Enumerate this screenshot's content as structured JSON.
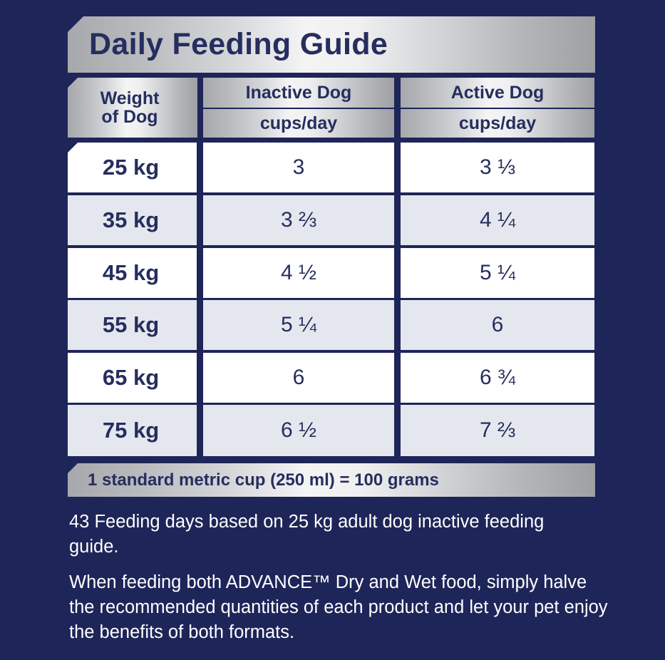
{
  "title": "Daily Feeding Guide",
  "headers": {
    "weight_line1": "Weight",
    "weight_line2": "of Dog",
    "inactive": "Inactive Dog",
    "active": "Active Dog",
    "unit": "cups/day"
  },
  "rows": [
    {
      "weight": "25 kg",
      "inactive": "3",
      "active": "3 ⅓"
    },
    {
      "weight": "35 kg",
      "inactive": "3 ⅔",
      "active": "4 ¼"
    },
    {
      "weight": "45 kg",
      "inactive": "4 ½",
      "active": "5 ¼"
    },
    {
      "weight": "55 kg",
      "inactive": "5 ¼",
      "active": "6"
    },
    {
      "weight": "65 kg",
      "inactive": "6",
      "active": "6 ¾"
    },
    {
      "weight": "75 kg",
      "inactive": "6 ½",
      "active": "7 ⅔"
    }
  ],
  "footer": "1 standard metric cup (250 ml) = 100 grams",
  "notes": [
    "43 Feeding days based on 25 kg adult dog inactive feeding guide.",
    "When feeding both ADVANCE™ Dry and Wet food, simply halve the recommended quantities of each product and let your pet enjoy the benefits of both formats."
  ],
  "colors": {
    "background": "#1e2559",
    "text_dark": "#262e5e",
    "row_light": "#ffffff",
    "row_alt": "#e4e7ee"
  }
}
